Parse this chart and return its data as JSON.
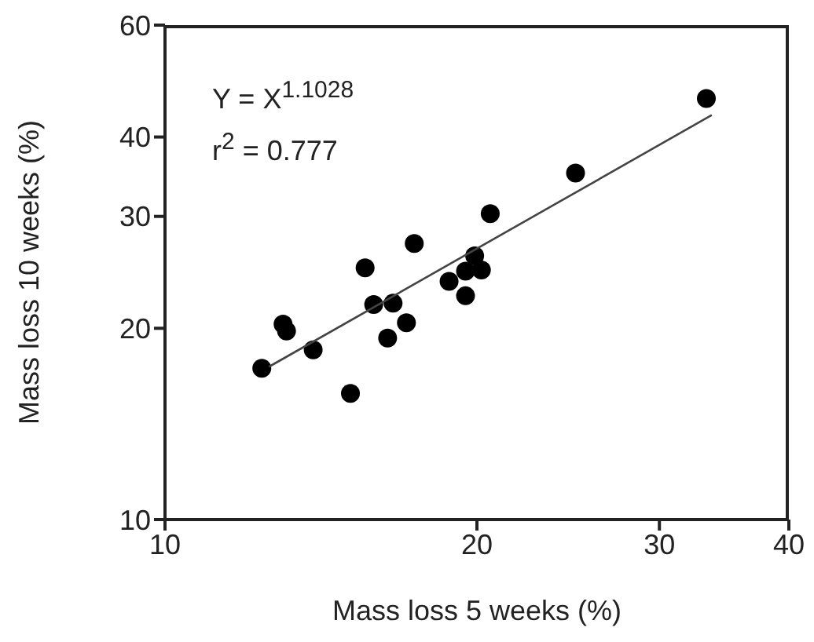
{
  "chart_data": {
    "type": "scatter",
    "xlabel": "Mass loss 5 weeks (%)",
    "ylabel": "Mass loss 10 weeks (%)",
    "log": "xy",
    "xlim": [
      10,
      40
    ],
    "xticks": [
      10,
      20,
      30,
      40
    ],
    "ylim": [
      10,
      60
    ],
    "yticks": [
      10,
      20,
      30,
      40,
      60
    ],
    "annotations": [
      "Y = X$^{1.1028}$",
      "r$^{2}$ = 0.777"
    ],
    "series": [
      {
        "color": "#000000",
        "marker": "circle",
        "x": [
          12.4,
          13.0,
          13.1,
          13.9,
          15.1,
          15.6,
          15.9,
          16.4,
          16.6,
          17.1,
          17.4,
          18.8,
          19.5,
          19.5,
          19.9,
          20.2,
          20.6,
          24.9,
          33.3
        ],
        "values": [
          17.3,
          20.3,
          19.8,
          18.5,
          15.8,
          24.9,
          21.8,
          19.3,
          21.9,
          20.4,
          27.2,
          23.7,
          22.5,
          24.6,
          26.0,
          24.7,
          30.3,
          35.1,
          46.0
        ]
      },
      {
        "type": "line",
        "color": "#444444",
        "marker": "none",
        "x": [
          12.6,
          33.7
        ],
        "values": [
          17.4,
          43.3
        ]
      }
    ]
  }
}
